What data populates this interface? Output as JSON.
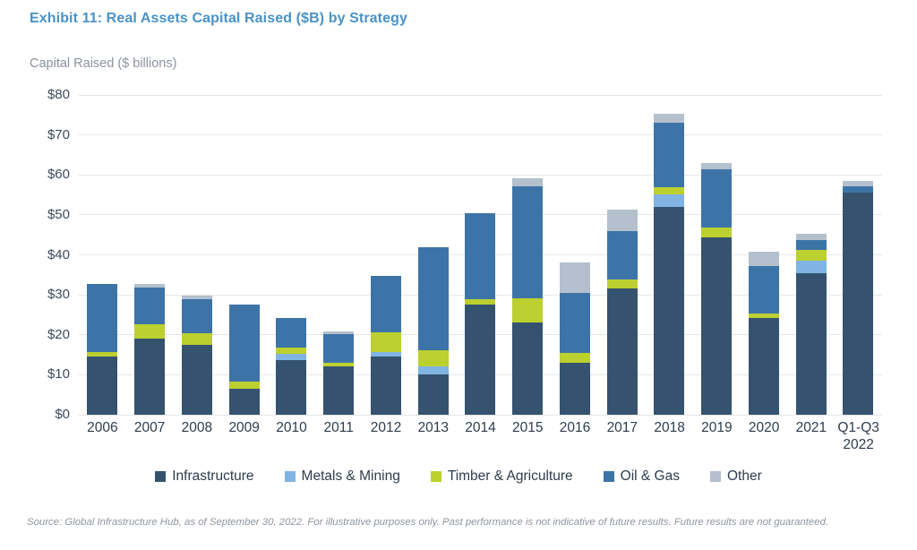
{
  "header": {
    "title": "Exhibit 11: Real Assets Capital Raised ($B) by Strategy"
  },
  "axis_title": "Capital Raised ($ billions)",
  "chart_data": {
    "type": "bar",
    "stacked": true,
    "title": "Exhibit 11: Real Assets Capital Raised ($B) by Strategy",
    "xlabel": "",
    "ylabel": "Capital Raised ($ billions)",
    "ylim": [
      0,
      80
    ],
    "ytick_step": 10,
    "ytick_labels": [
      "$0",
      "$10",
      "$20",
      "$30",
      "$40",
      "$50",
      "$60",
      "$70",
      "$80"
    ],
    "grid": "horizontal",
    "legend_position": "bottom",
    "categories": [
      "2006",
      "2007",
      "2008",
      "2009",
      "2010",
      "2011",
      "2012",
      "2013",
      "2014",
      "2015",
      "2016",
      "2017",
      "2018",
      "2019",
      "2020",
      "2021",
      "Q1-Q3 2022"
    ],
    "series": [
      {
        "name": "Infrastructure",
        "color": "#35536f",
        "values": [
          14.5,
          19.0,
          17.5,
          6.5,
          13.6,
          12.0,
          14.6,
          10.0,
          27.5,
          23.0,
          13.0,
          31.6,
          51.9,
          44.4,
          24.3,
          35.5,
          55.5
        ]
      },
      {
        "name": "Metals & Mining",
        "color": "#80b4e2",
        "values": [
          0,
          0,
          0,
          0,
          1.6,
          0,
          1.0,
          2.2,
          0,
          0,
          0,
          0,
          3.3,
          0,
          0,
          3.1,
          0
        ]
      },
      {
        "name": "Timber & Agriculture",
        "color": "#bcd02f",
        "values": [
          1.3,
          3.6,
          3.0,
          1.8,
          1.7,
          0.9,
          5.1,
          3.9,
          1.5,
          6.2,
          2.5,
          2.2,
          1.8,
          2.4,
          1.1,
          2.6,
          0
        ]
      },
      {
        "name": "Oil & Gas",
        "color": "#3d74a8",
        "values": [
          17.0,
          9.3,
          8.4,
          19.2,
          7.2,
          7.3,
          14.1,
          25.9,
          21.5,
          28.0,
          15.0,
          12.2,
          16.0,
          14.6,
          11.9,
          2.5,
          1.7
        ]
      },
      {
        "name": "Other",
        "color": "#b4c0cd",
        "values": [
          0,
          0.8,
          0.9,
          0,
          0,
          0.7,
          0,
          0,
          0,
          1.9,
          7.5,
          5.3,
          2.2,
          1.6,
          3.4,
          1.6,
          1.2
        ]
      }
    ],
    "totals": [
      32.8,
      32.7,
      29.8,
      27.5,
      24.1,
      20.9,
      34.8,
      42.0,
      50.5,
      59.1,
      38.0,
      51.3,
      75.2,
      63.0,
      40.7,
      45.3,
      58.4
    ]
  },
  "colors": {
    "title": "#4a92c7",
    "axis_title": "#8b939c",
    "tick_label": "#3d4a5c",
    "gridline": "#e4e7ea",
    "footer": "#8d959d"
  },
  "footer": {
    "source": "Source: Global Infrastructure Hub, as of September 30, 2022. For illustrative purposes only. Past performance is not indicative of future results. Future results are not guaranteed."
  }
}
